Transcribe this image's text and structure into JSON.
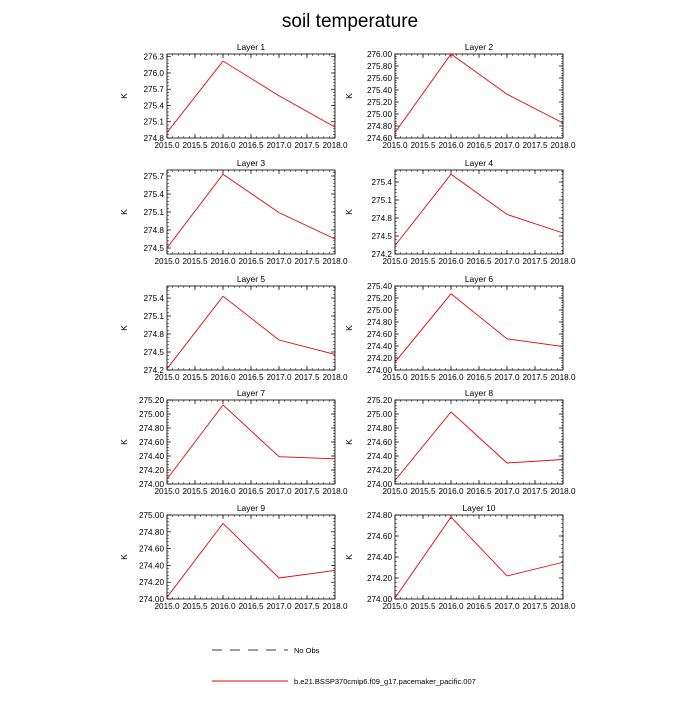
{
  "figure": {
    "title": "soil temperature"
  },
  "legend": {
    "entries": [
      {
        "label": "No Obs",
        "style": "dashed",
        "color": "#4b2a73"
      },
      {
        "label": "b.e21.BSSP370cmip6.f09_g17.pacemaker_pacific.007",
        "style": "solid",
        "color": "#e8000b"
      }
    ]
  },
  "chart_data": [
    {
      "type": "line",
      "title": "Layer 1",
      "ylabel": "K",
      "x": [
        2015.0,
        2016.0,
        2017.0,
        2018.0
      ],
      "xlim": [
        2015.0,
        2018.0
      ],
      "xticks": [
        "2015.0",
        "2015.5",
        "2016.0",
        "2016.5",
        "2017.0",
        "2017.5",
        "2018.0"
      ],
      "ylim": [
        274.8,
        276.35
      ],
      "yticks": [
        "274.8",
        "275.1",
        "275.4",
        "275.7",
        "276.0",
        "276.3"
      ],
      "series": [
        {
          "values": [
            274.9,
            276.22,
            275.58,
            275.0
          ],
          "color": "#e8000b"
        }
      ]
    },
    {
      "type": "line",
      "title": "Layer 2",
      "ylabel": "K",
      "x": [
        2015.0,
        2016.0,
        2017.0,
        2018.0
      ],
      "xlim": [
        2015.0,
        2018.0
      ],
      "xticks": [
        "2015.0",
        "2015.5",
        "2016.0",
        "2016.5",
        "2017.0",
        "2017.5",
        "2018.0"
      ],
      "ylim": [
        274.6,
        276.0
      ],
      "yticks": [
        "274.60",
        "274.80",
        "275.00",
        "275.20",
        "275.40",
        "275.60",
        "275.80",
        "276.00"
      ],
      "series": [
        {
          "values": [
            274.69,
            276.0,
            275.33,
            274.85
          ],
          "color": "#e8000b"
        }
      ]
    },
    {
      "type": "line",
      "title": "Layer 3",
      "ylabel": "K",
      "x": [
        2015.0,
        2016.0,
        2017.0,
        2018.0
      ],
      "xlim": [
        2015.0,
        2018.0
      ],
      "xticks": [
        "2015.0",
        "2015.5",
        "2016.0",
        "2016.5",
        "2017.0",
        "2017.5",
        "2018.0"
      ],
      "ylim": [
        274.4,
        275.8
      ],
      "yticks": [
        "274.5",
        "274.8",
        "275.1",
        "275.4",
        "275.7"
      ],
      "series": [
        {
          "values": [
            274.5,
            275.73,
            275.09,
            274.65
          ],
          "color": "#e8000b"
        }
      ]
    },
    {
      "type": "line",
      "title": "Layer 4",
      "ylabel": "K",
      "x": [
        2015.0,
        2016.0,
        2017.0,
        2018.0
      ],
      "xlim": [
        2015.0,
        2018.0
      ],
      "xticks": [
        "2015.0",
        "2015.5",
        "2016.0",
        "2016.5",
        "2017.0",
        "2017.5",
        "2018.0"
      ],
      "ylim": [
        274.2,
        275.6
      ],
      "yticks": [
        "274.2",
        "274.5",
        "274.8",
        "275.1",
        "275.4"
      ],
      "series": [
        {
          "values": [
            274.34,
            275.53,
            274.86,
            274.55
          ],
          "color": "#e8000b"
        }
      ]
    },
    {
      "type": "line",
      "title": "Layer 5",
      "ylabel": "K",
      "x": [
        2015.0,
        2016.0,
        2017.0,
        2018.0
      ],
      "xlim": [
        2015.0,
        2018.0
      ],
      "xticks": [
        "2015.0",
        "2015.5",
        "2016.0",
        "2016.5",
        "2017.0",
        "2017.5",
        "2018.0"
      ],
      "ylim": [
        274.2,
        275.6
      ],
      "yticks": [
        "274.2",
        "274.5",
        "274.8",
        "275.1",
        "275.4"
      ],
      "series": [
        {
          "values": [
            274.22,
            275.43,
            274.7,
            274.46
          ],
          "color": "#e8000b"
        }
      ]
    },
    {
      "type": "line",
      "title": "Layer 6",
      "ylabel": "K",
      "x": [
        2015.0,
        2016.0,
        2017.0,
        2018.0
      ],
      "xlim": [
        2015.0,
        2018.0
      ],
      "xticks": [
        "2015.0",
        "2015.5",
        "2016.0",
        "2016.5",
        "2017.0",
        "2017.5",
        "2018.0"
      ],
      "ylim": [
        274.0,
        275.4
      ],
      "yticks": [
        "274.00",
        "274.20",
        "274.40",
        "274.60",
        "274.80",
        "275.00",
        "275.20",
        "275.40"
      ],
      "series": [
        {
          "values": [
            274.13,
            275.27,
            274.52,
            274.39
          ],
          "color": "#e8000b"
        }
      ]
    },
    {
      "type": "line",
      "title": "Layer 7",
      "ylabel": "K",
      "x": [
        2015.0,
        2016.0,
        2017.0,
        2018.0
      ],
      "xlim": [
        2015.0,
        2018.0
      ],
      "xticks": [
        "2015.0",
        "2015.5",
        "2016.0",
        "2016.5",
        "2017.0",
        "2017.5",
        "2018.0"
      ],
      "ylim": [
        274.0,
        275.2
      ],
      "yticks": [
        "274.00",
        "274.20",
        "274.40",
        "274.60",
        "274.80",
        "275.00",
        "275.20"
      ],
      "series": [
        {
          "values": [
            274.07,
            275.13,
            274.39,
            274.36
          ],
          "color": "#e8000b"
        }
      ]
    },
    {
      "type": "line",
      "title": "Layer 8",
      "ylabel": "K",
      "x": [
        2015.0,
        2016.0,
        2017.0,
        2018.0
      ],
      "xlim": [
        2015.0,
        2018.0
      ],
      "xticks": [
        "2015.0",
        "2015.5",
        "2016.0",
        "2016.5",
        "2017.0",
        "2017.5",
        "2018.0"
      ],
      "ylim": [
        274.0,
        275.2
      ],
      "yticks": [
        "274.00",
        "274.20",
        "274.40",
        "274.60",
        "274.80",
        "275.00",
        "275.20"
      ],
      "series": [
        {
          "values": [
            274.05,
            275.03,
            274.3,
            274.35
          ],
          "color": "#e8000b"
        }
      ]
    },
    {
      "type": "line",
      "title": "Layer 9",
      "ylabel": "K",
      "x": [
        2015.0,
        2016.0,
        2017.0,
        2018.0
      ],
      "xlim": [
        2015.0,
        2018.0
      ],
      "xticks": [
        "2015.0",
        "2015.5",
        "2016.0",
        "2016.5",
        "2017.0",
        "2017.5",
        "2018.0"
      ],
      "ylim": [
        274.0,
        275.0
      ],
      "yticks": [
        "274.00",
        "274.20",
        "274.40",
        "274.60",
        "274.80",
        "275.00"
      ],
      "series": [
        {
          "values": [
            274.02,
            274.9,
            274.25,
            274.34
          ],
          "color": "#e8000b"
        }
      ]
    },
    {
      "type": "line",
      "title": "Layer 10",
      "ylabel": "K",
      "x": [
        2015.0,
        2016.0,
        2017.0,
        2018.0
      ],
      "xlim": [
        2015.0,
        2018.0
      ],
      "xticks": [
        "2015.0",
        "2015.5",
        "2016.0",
        "2016.5",
        "2017.0",
        "2017.5",
        "2018.0"
      ],
      "ylim": [
        274.0,
        274.8
      ],
      "yticks": [
        "274.00",
        "274.20",
        "274.40",
        "274.60",
        "274.80"
      ],
      "series": [
        {
          "values": [
            274.01,
            274.78,
            274.22,
            274.35
          ],
          "color": "#e8000b"
        }
      ]
    }
  ]
}
